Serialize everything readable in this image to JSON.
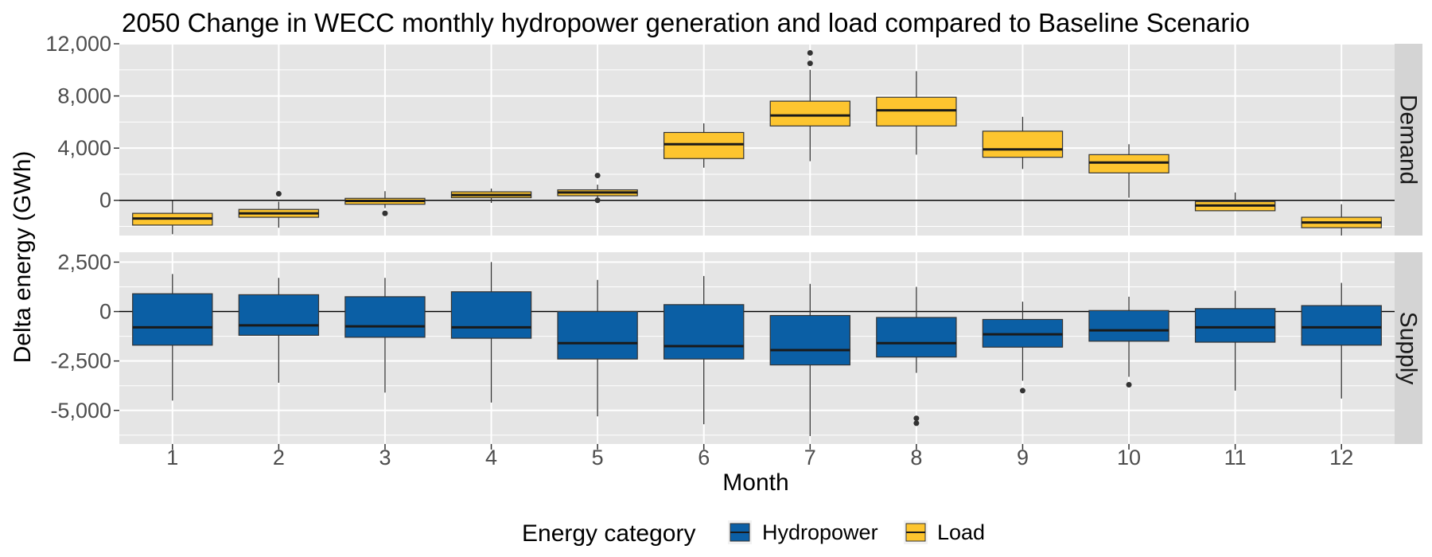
{
  "chart_data": {
    "type": "boxplot",
    "title": "2050 Change in WECC monthly hydropower generation and load compared to Baseline Scenario",
    "xlabel": "Month",
    "ylabel": "Delta energy (GWh)",
    "categories": [
      "1",
      "2",
      "3",
      "4",
      "5",
      "6",
      "7",
      "8",
      "9",
      "10",
      "11",
      "12"
    ],
    "facets": [
      {
        "name": "Demand",
        "series": "Load",
        "ylim": [
          -2700,
          12000
        ],
        "yticks": [
          0,
          4000,
          8000,
          12000
        ],
        "ytick_labels": [
          "0",
          "4,000",
          "8,000",
          "12,000"
        ],
        "boxes": [
          {
            "x": "1",
            "min": -2600,
            "q1": -1900,
            "median": -1400,
            "q3": -1000,
            "max": 0,
            "outliers": []
          },
          {
            "x": "2",
            "min": -2100,
            "q1": -1300,
            "median": -1000,
            "q3": -700,
            "max": -100,
            "outliers": [
              500
            ]
          },
          {
            "x": "3",
            "min": -600,
            "q1": -300,
            "median": -50,
            "q3": 150,
            "max": 700,
            "outliers": [
              -1000
            ]
          },
          {
            "x": "4",
            "min": -200,
            "q1": 200,
            "median": 400,
            "q3": 650,
            "max": 900,
            "outliers": []
          },
          {
            "x": "5",
            "min": 200,
            "q1": 350,
            "median": 600,
            "q3": 800,
            "max": 1200,
            "outliers": [
              1900,
              0
            ]
          },
          {
            "x": "6",
            "min": 2500,
            "q1": 3200,
            "median": 4300,
            "q3": 5200,
            "max": 5900,
            "outliers": []
          },
          {
            "x": "7",
            "min": 3000,
            "q1": 5700,
            "median": 6500,
            "q3": 7600,
            "max": 10000,
            "outliers": [
              11300,
              10500
            ]
          },
          {
            "x": "8",
            "min": 3500,
            "q1": 5700,
            "median": 6900,
            "q3": 7900,
            "max": 9900,
            "outliers": []
          },
          {
            "x": "9",
            "min": 2400,
            "q1": 3300,
            "median": 3900,
            "q3": 5300,
            "max": 6400,
            "outliers": []
          },
          {
            "x": "10",
            "min": 200,
            "q1": 2100,
            "median": 2900,
            "q3": 3500,
            "max": 4300,
            "outliers": []
          },
          {
            "x": "11",
            "min": -800,
            "q1": -800,
            "median": -400,
            "q3": -100,
            "max": 600,
            "outliers": []
          },
          {
            "x": "12",
            "min": -2700,
            "q1": -2100,
            "median": -1700,
            "q3": -1300,
            "max": -300,
            "outliers": []
          }
        ]
      },
      {
        "name": "Supply",
        "series": "Hydropower",
        "ylim": [
          -6700,
          3000
        ],
        "yticks": [
          -5000,
          -2500,
          0,
          2500
        ],
        "ytick_labels": [
          "-5,000",
          "-2,500",
          "0",
          "2,500"
        ],
        "boxes": [
          {
            "x": "1",
            "min": -4500,
            "q1": -1700,
            "median": -800,
            "q3": 900,
            "max": 1900,
            "outliers": []
          },
          {
            "x": "2",
            "min": -3600,
            "q1": -1200,
            "median": -700,
            "q3": 850,
            "max": 1700,
            "outliers": []
          },
          {
            "x": "3",
            "min": -4100,
            "q1": -1300,
            "median": -750,
            "q3": 750,
            "max": 1700,
            "outliers": []
          },
          {
            "x": "4",
            "min": -4600,
            "q1": -1350,
            "median": -800,
            "q3": 1000,
            "max": 2500,
            "outliers": []
          },
          {
            "x": "5",
            "min": -5300,
            "q1": -2400,
            "median": -1600,
            "q3": 0,
            "max": 1600,
            "outliers": []
          },
          {
            "x": "6",
            "min": -5700,
            "q1": -2400,
            "median": -1750,
            "q3": 350,
            "max": 1800,
            "outliers": []
          },
          {
            "x": "7",
            "min": -6300,
            "q1": -2700,
            "median": -1950,
            "q3": -200,
            "max": 1400,
            "outliers": []
          },
          {
            "x": "8",
            "min": -3100,
            "q1": -2300,
            "median": -1600,
            "q3": -300,
            "max": 1250,
            "outliers": [
              -5400,
              -5650
            ]
          },
          {
            "x": "9",
            "min": -3500,
            "q1": -1800,
            "median": -1150,
            "q3": -400,
            "max": 500,
            "outliers": [
              -4000
            ]
          },
          {
            "x": "10",
            "min": -3300,
            "q1": -1500,
            "median": -950,
            "q3": 50,
            "max": 750,
            "outliers": [
              -3700
            ]
          },
          {
            "x": "11",
            "min": -4000,
            "q1": -1550,
            "median": -800,
            "q3": 150,
            "max": 1050,
            "outliers": []
          },
          {
            "x": "12",
            "min": -4400,
            "q1": -1700,
            "median": -800,
            "q3": 300,
            "max": 1450,
            "outliers": []
          }
        ]
      }
    ],
    "legend": {
      "title": "Energy category",
      "position": "bottom",
      "entries": [
        {
          "name": "Hydropower",
          "color": "#0b5fa5"
        },
        {
          "name": "Load",
          "color": "#fdc52f"
        }
      ]
    },
    "colors": {
      "Hydropower": "#0b5fa5",
      "Load": "#fdc52f",
      "panel_bg": "#e5e5e5",
      "strip_bg": "#d4d4d4",
      "grid": "#ffffff"
    },
    "grid": true
  }
}
